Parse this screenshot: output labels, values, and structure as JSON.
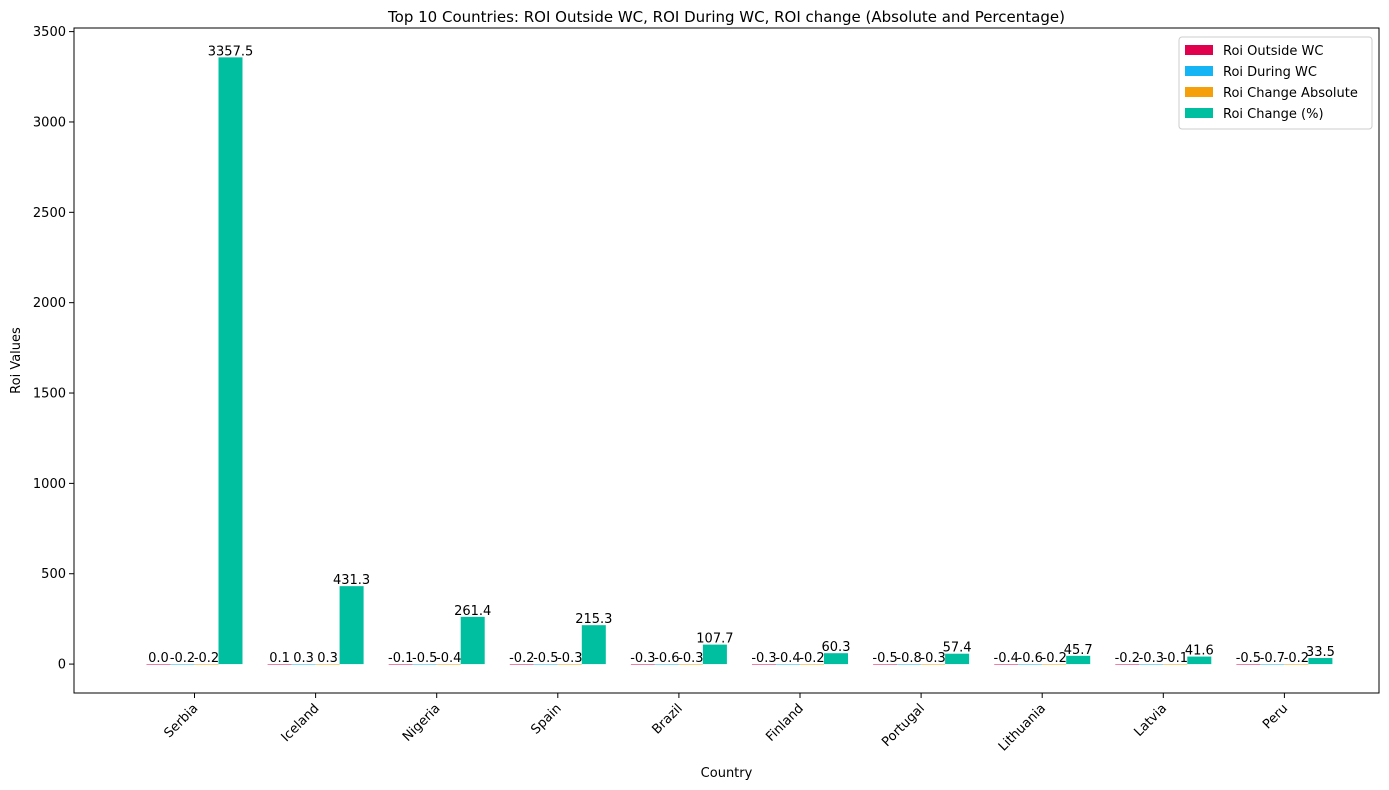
{
  "chart_data": {
    "type": "bar",
    "title": "Top 10 Countries: ROI Outside WC, ROI During WC, ROI change (Absolute and Percentage)",
    "xlabel": "Country",
    "ylabel": "Roi Values",
    "ylim": [
      -160,
      3520
    ],
    "yticks": [
      0,
      500,
      1000,
      1500,
      2000,
      2500,
      3000,
      3500
    ],
    "categories": [
      "Serbia",
      "Iceland",
      "Nigeria",
      "Spain",
      "Brazil",
      "Finland",
      "Portugal",
      "Lithuania",
      "Latvia",
      "Peru"
    ],
    "series": [
      {
        "name": "Roi Outside WC",
        "color": "#e0004d",
        "values": [
          -0.0,
          0.1,
          -0.1,
          -0.2,
          -0.3,
          -0.3,
          -0.5,
          -0.4,
          -0.2,
          -0.5
        ]
      },
      {
        "name": "Roi During WC",
        "color": "#14b4f5",
        "values": [
          -0.2,
          0.3,
          -0.5,
          -0.5,
          -0.6,
          -0.4,
          -0.8,
          -0.6,
          -0.3,
          -0.7
        ]
      },
      {
        "name": "Roi Change Absolute",
        "color": "#f5a00a",
        "values": [
          -0.2,
          0.3,
          -0.4,
          -0.3,
          -0.3,
          -0.2,
          -0.3,
          -0.2,
          -0.1,
          -0.2
        ]
      },
      {
        "name": "Roi Change (%)",
        "color": "#00bfa0",
        "values": [
          3357.5,
          431.3,
          261.4,
          215.3,
          107.7,
          60.3,
          57.4,
          45.7,
          41.6,
          33.5
        ]
      }
    ],
    "grid": false,
    "legend": "top-right"
  }
}
